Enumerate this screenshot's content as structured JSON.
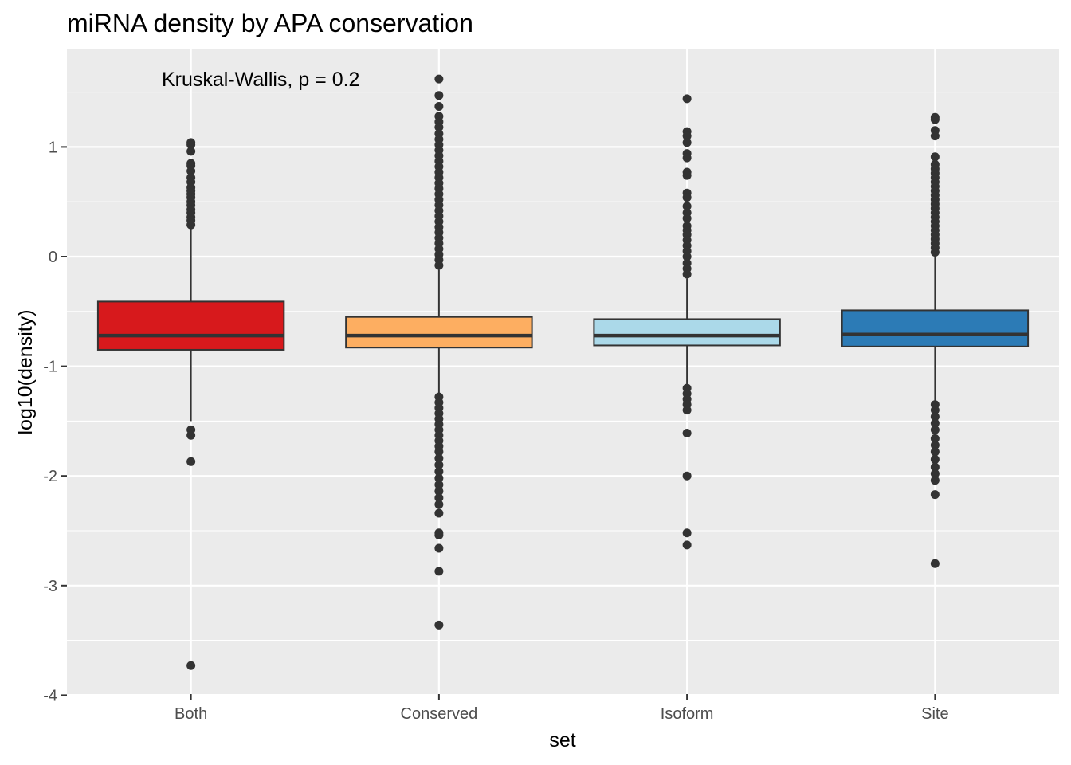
{
  "chart_data": {
    "type": "boxplot",
    "title": "miRNA density by APA conservation",
    "xlabel": "set",
    "ylabel": "log10(density)",
    "annotation": "Kruskal-Wallis, p = 0.2",
    "categories": [
      "Both",
      "Conserved",
      "Isoform",
      "Site"
    ],
    "y_ticks": [
      1,
      0,
      -1,
      -2,
      -3,
      -4
    ],
    "y_tick_labels": [
      "1",
      "0",
      "-1",
      "-2",
      "-3",
      "-4"
    ],
    "ylim": [
      -4,
      1.85
    ],
    "grid": true,
    "legend": "none",
    "colors": {
      "panel_bg": "#ebebeb",
      "grid": "#ffffff",
      "box_outline": "#333333",
      "outlier": "#333333",
      "fills": [
        "#d7191c",
        "#fdae61",
        "#abd9e9",
        "#2c7bb6"
      ]
    },
    "boxes": [
      {
        "category": "Both",
        "q1": -0.85,
        "median": -0.72,
        "q3": -0.41,
        "whisker_low": -1.5,
        "whisker_high": 0.27,
        "outliers": [
          1.04,
          1.02,
          0.96,
          0.85,
          0.83,
          0.78,
          0.72,
          0.68,
          0.63,
          0.6,
          0.57,
          0.54,
          0.5,
          0.47,
          0.43,
          0.4,
          0.36,
          0.33,
          0.29,
          -1.58,
          -1.63,
          -1.87,
          -3.73
        ]
      },
      {
        "category": "Conserved",
        "q1": -0.83,
        "median": -0.72,
        "q3": -0.55,
        "whisker_low": -1.25,
        "whisker_high": -0.12,
        "outliers": [
          1.62,
          1.47,
          1.37,
          1.28,
          1.23,
          1.18,
          1.12,
          1.07,
          1.02,
          0.97,
          0.92,
          0.87,
          0.82,
          0.77,
          0.72,
          0.67,
          0.62,
          0.57,
          0.52,
          0.47,
          0.42,
          0.37,
          0.32,
          0.27,
          0.22,
          0.17,
          0.12,
          0.07,
          0.02,
          -0.03,
          -0.08,
          -1.28,
          -1.33,
          -1.38,
          -1.43,
          -1.48,
          -1.53,
          -1.58,
          -1.63,
          -1.68,
          -1.73,
          -1.78,
          -1.84,
          -1.9,
          -1.96,
          -2.02,
          -2.08,
          -2.14,
          -2.2,
          -2.26,
          -2.34,
          -2.52,
          -2.54,
          -2.66,
          -2.87,
          -3.36
        ]
      },
      {
        "category": "Isoform",
        "q1": -0.81,
        "median": -0.72,
        "q3": -0.57,
        "whisker_low": -1.18,
        "whisker_high": -0.2,
        "outliers": [
          1.44,
          1.14,
          1.1,
          1.04,
          0.94,
          0.9,
          0.77,
          0.74,
          0.58,
          0.54,
          0.46,
          0.4,
          0.35,
          0.28,
          0.24,
          0.2,
          0.15,
          0.1,
          0.05,
          0.0,
          -0.06,
          -0.11,
          -0.16,
          -1.2,
          -1.25,
          -1.3,
          -1.35,
          -1.4,
          -1.61,
          -2.0,
          -2.52,
          -2.63
        ]
      },
      {
        "category": "Site",
        "q1": -0.82,
        "median": -0.71,
        "q3": -0.49,
        "whisker_low": -1.33,
        "whisker_high": 0.01,
        "outliers": [
          1.27,
          1.25,
          1.15,
          1.1,
          0.91,
          0.84,
          0.8,
          0.76,
          0.72,
          0.68,
          0.64,
          0.6,
          0.56,
          0.52,
          0.48,
          0.44,
          0.4,
          0.36,
          0.32,
          0.28,
          0.24,
          0.2,
          0.16,
          0.12,
          0.08,
          0.04,
          -1.35,
          -1.4,
          -1.46,
          -1.52,
          -1.58,
          -1.66,
          -1.72,
          -1.78,
          -1.85,
          -1.92,
          -1.98,
          -2.04,
          -2.17,
          -2.8
        ]
      }
    ]
  }
}
